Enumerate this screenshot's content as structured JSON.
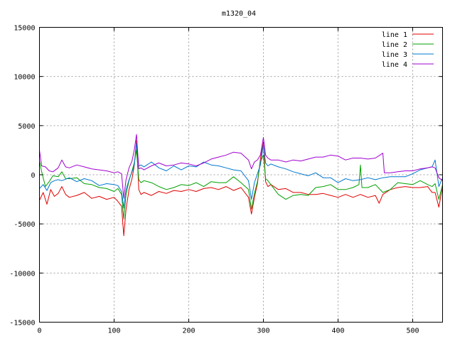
{
  "chart_data": {
    "type": "line",
    "title": "m1320_04",
    "xlabel": "",
    "ylabel": "",
    "xlim": [
      0,
      540
    ],
    "ylim": [
      -15000,
      15000
    ],
    "xticks": [
      0,
      100,
      200,
      300,
      400,
      500
    ],
    "yticks": [
      -15000,
      -10000,
      -5000,
      0,
      5000,
      10000,
      15000
    ],
    "xtick_labels": [
      "0",
      "100",
      "200",
      "300",
      "400",
      "500"
    ],
    "ytick_labels": [
      "-15000",
      "-10000",
      "-5000",
      "0",
      "5000",
      "10000",
      "15000"
    ],
    "grid": true,
    "legend_position": "top-right",
    "series": [
      {
        "name": "line 1",
        "color": "#e00000",
        "points": [
          [
            0,
            -2600
          ],
          [
            5,
            -1800
          ],
          [
            10,
            -3000
          ],
          [
            15,
            -1500
          ],
          [
            20,
            -2200
          ],
          [
            25,
            -1900
          ],
          [
            30,
            -1200
          ],
          [
            35,
            -2000
          ],
          [
            40,
            -2300
          ],
          [
            50,
            -2100
          ],
          [
            60,
            -1800
          ],
          [
            70,
            -2400
          ],
          [
            80,
            -2200
          ],
          [
            90,
            -2500
          ],
          [
            100,
            -2300
          ],
          [
            105,
            -2700
          ],
          [
            110,
            -3200
          ],
          [
            113,
            -6200
          ],
          [
            116,
            -3500
          ],
          [
            120,
            -1500
          ],
          [
            124,
            -400
          ],
          [
            127,
            900
          ],
          [
            130,
            3500
          ],
          [
            133,
            -1500
          ],
          [
            136,
            -2000
          ],
          [
            140,
            -1800
          ],
          [
            150,
            -2100
          ],
          [
            160,
            -1700
          ],
          [
            170,
            -1900
          ],
          [
            180,
            -1600
          ],
          [
            190,
            -1700
          ],
          [
            200,
            -1500
          ],
          [
            210,
            -1700
          ],
          [
            220,
            -1400
          ],
          [
            230,
            -1300
          ],
          [
            240,
            -1500
          ],
          [
            250,
            -1200
          ],
          [
            260,
            -1600
          ],
          [
            270,
            -1300
          ],
          [
            280,
            -2300
          ],
          [
            284,
            -4000
          ],
          [
            288,
            -2300
          ],
          [
            292,
            -900
          ],
          [
            296,
            1600
          ],
          [
            300,
            3300
          ],
          [
            303,
            -700
          ],
          [
            306,
            -1200
          ],
          [
            310,
            -1000
          ],
          [
            320,
            -1500
          ],
          [
            330,
            -1400
          ],
          [
            340,
            -1800
          ],
          [
            350,
            -1800
          ],
          [
            360,
            -2000
          ],
          [
            370,
            -2000
          ],
          [
            380,
            -1900
          ],
          [
            390,
            -2100
          ],
          [
            400,
            -2300
          ],
          [
            410,
            -2000
          ],
          [
            420,
            -2300
          ],
          [
            430,
            -2000
          ],
          [
            440,
            -2300
          ],
          [
            450,
            -2100
          ],
          [
            455,
            -2900
          ],
          [
            460,
            -2000
          ],
          [
            470,
            -1500
          ],
          [
            480,
            -1300
          ],
          [
            490,
            -1200
          ],
          [
            500,
            -1300
          ],
          [
            510,
            -1300
          ],
          [
            520,
            -1200
          ],
          [
            526,
            -1800
          ],
          [
            530,
            -1800
          ],
          [
            535,
            -3300
          ],
          [
            540,
            -1200
          ]
        ]
      },
      {
        "name": "line 2",
        "color": "#00a000",
        "points": [
          [
            0,
            1400
          ],
          [
            3,
            300
          ],
          [
            8,
            -1200
          ],
          [
            13,
            -700
          ],
          [
            18,
            -100
          ],
          [
            25,
            -200
          ],
          [
            30,
            300
          ],
          [
            35,
            -400
          ],
          [
            40,
            -400
          ],
          [
            50,
            -300
          ],
          [
            60,
            -900
          ],
          [
            70,
            -1000
          ],
          [
            80,
            -1300
          ],
          [
            90,
            -1400
          ],
          [
            100,
            -1700
          ],
          [
            105,
            -1400
          ],
          [
            110,
            -2000
          ],
          [
            113,
            -4500
          ],
          [
            116,
            -2000
          ],
          [
            120,
            -600
          ],
          [
            124,
            400
          ],
          [
            127,
            1200
          ],
          [
            130,
            2500
          ],
          [
            133,
            -500
          ],
          [
            136,
            -800
          ],
          [
            140,
            -600
          ],
          [
            150,
            -800
          ],
          [
            160,
            -1200
          ],
          [
            170,
            -1500
          ],
          [
            180,
            -1300
          ],
          [
            190,
            -1000
          ],
          [
            200,
            -1100
          ],
          [
            210,
            -800
          ],
          [
            220,
            -1200
          ],
          [
            230,
            -700
          ],
          [
            240,
            -800
          ],
          [
            250,
            -800
          ],
          [
            260,
            -200
          ],
          [
            270,
            -800
          ],
          [
            280,
            -1500
          ],
          [
            284,
            -3500
          ],
          [
            288,
            -1900
          ],
          [
            292,
            -700
          ],
          [
            296,
            1300
          ],
          [
            300,
            2000
          ],
          [
            303,
            -400
          ],
          [
            306,
            -600
          ],
          [
            310,
            -1000
          ],
          [
            320,
            -2000
          ],
          [
            330,
            -2500
          ],
          [
            340,
            -2100
          ],
          [
            350,
            -2000
          ],
          [
            360,
            -2100
          ],
          [
            370,
            -1300
          ],
          [
            380,
            -1200
          ],
          [
            390,
            -1000
          ],
          [
            400,
            -1500
          ],
          [
            410,
            -1500
          ],
          [
            420,
            -1300
          ],
          [
            428,
            -1000
          ],
          [
            430,
            1000
          ],
          [
            432,
            -1300
          ],
          [
            440,
            -1300
          ],
          [
            450,
            -1000
          ],
          [
            460,
            -1800
          ],
          [
            470,
            -1500
          ],
          [
            480,
            -800
          ],
          [
            490,
            -900
          ],
          [
            500,
            -1000
          ],
          [
            510,
            -600
          ],
          [
            520,
            -1000
          ],
          [
            526,
            -1200
          ],
          [
            530,
            -900
          ],
          [
            535,
            -2500
          ],
          [
            540,
            -1000
          ]
        ]
      },
      {
        "name": "line 3",
        "color": "#0078d0",
        "points": [
          [
            0,
            -1400
          ],
          [
            5,
            -1000
          ],
          [
            10,
            -1600
          ],
          [
            15,
            -800
          ],
          [
            20,
            -600
          ],
          [
            25,
            -500
          ],
          [
            30,
            -600
          ],
          [
            40,
            -300
          ],
          [
            50,
            -700
          ],
          [
            60,
            -400
          ],
          [
            70,
            -600
          ],
          [
            80,
            -1100
          ],
          [
            90,
            -900
          ],
          [
            100,
            -1000
          ],
          [
            105,
            -1100
          ],
          [
            110,
            -1700
          ],
          [
            113,
            -3400
          ],
          [
            116,
            -1500
          ],
          [
            120,
            -500
          ],
          [
            124,
            300
          ],
          [
            127,
            900
          ],
          [
            130,
            3200
          ],
          [
            133,
            900
          ],
          [
            136,
            1000
          ],
          [
            140,
            800
          ],
          [
            150,
            1300
          ],
          [
            160,
            700
          ],
          [
            170,
            400
          ],
          [
            180,
            900
          ],
          [
            190,
            500
          ],
          [
            200,
            900
          ],
          [
            210,
            800
          ],
          [
            220,
            1300
          ],
          [
            230,
            1000
          ],
          [
            240,
            900
          ],
          [
            250,
            700
          ],
          [
            260,
            500
          ],
          [
            270,
            400
          ],
          [
            280,
            -600
          ],
          [
            284,
            -2500
          ],
          [
            288,
            -800
          ],
          [
            292,
            100
          ],
          [
            296,
            1000
          ],
          [
            300,
            3100
          ],
          [
            303,
            1200
          ],
          [
            306,
            900
          ],
          [
            310,
            1100
          ],
          [
            320,
            800
          ],
          [
            330,
            600
          ],
          [
            340,
            300
          ],
          [
            350,
            100
          ],
          [
            360,
            -100
          ],
          [
            370,
            200
          ],
          [
            380,
            -300
          ],
          [
            390,
            -300
          ],
          [
            400,
            -800
          ],
          [
            410,
            -400
          ],
          [
            420,
            -600
          ],
          [
            430,
            -500
          ],
          [
            440,
            -300
          ],
          [
            450,
            -500
          ],
          [
            460,
            -300
          ],
          [
            470,
            -200
          ],
          [
            480,
            -200
          ],
          [
            490,
            -200
          ],
          [
            500,
            100
          ],
          [
            510,
            500
          ],
          [
            520,
            700
          ],
          [
            526,
            800
          ],
          [
            530,
            1500
          ],
          [
            535,
            -1200
          ],
          [
            540,
            -300
          ]
        ]
      },
      {
        "name": "line 4",
        "color": "#a000d0",
        "points": [
          [
            0,
            2500
          ],
          [
            3,
            900
          ],
          [
            8,
            800
          ],
          [
            13,
            400
          ],
          [
            18,
            300
          ],
          [
            25,
            700
          ],
          [
            30,
            1500
          ],
          [
            35,
            800
          ],
          [
            40,
            700
          ],
          [
            50,
            1000
          ],
          [
            60,
            800
          ],
          [
            70,
            600
          ],
          [
            80,
            500
          ],
          [
            90,
            400
          ],
          [
            100,
            200
          ],
          [
            105,
            300
          ],
          [
            110,
            100
          ],
          [
            113,
            -2400
          ],
          [
            116,
            -500
          ],
          [
            120,
            700
          ],
          [
            124,
            1400
          ],
          [
            127,
            2500
          ],
          [
            130,
            4100
          ],
          [
            133,
            600
          ],
          [
            136,
            700
          ],
          [
            140,
            500
          ],
          [
            150,
            900
          ],
          [
            160,
            1200
          ],
          [
            170,
            900
          ],
          [
            180,
            1000
          ],
          [
            190,
            1200
          ],
          [
            200,
            1100
          ],
          [
            210,
            900
          ],
          [
            220,
            1200
          ],
          [
            230,
            1600
          ],
          [
            240,
            1800
          ],
          [
            250,
            2000
          ],
          [
            260,
            2300
          ],
          [
            270,
            2200
          ],
          [
            280,
            1500
          ],
          [
            284,
            600
          ],
          [
            288,
            1300
          ],
          [
            292,
            1500
          ],
          [
            296,
            2000
          ],
          [
            300,
            3800
          ],
          [
            303,
            2000
          ],
          [
            306,
            1700
          ],
          [
            310,
            1500
          ],
          [
            320,
            1500
          ],
          [
            330,
            1300
          ],
          [
            340,
            1500
          ],
          [
            350,
            1400
          ],
          [
            360,
            1600
          ],
          [
            370,
            1800
          ],
          [
            380,
            1800
          ],
          [
            390,
            2000
          ],
          [
            400,
            1900
          ],
          [
            410,
            1500
          ],
          [
            420,
            1700
          ],
          [
            430,
            1700
          ],
          [
            440,
            1600
          ],
          [
            450,
            1700
          ],
          [
            460,
            2200
          ],
          [
            462,
            200
          ],
          [
            470,
            200
          ],
          [
            480,
            300
          ],
          [
            490,
            400
          ],
          [
            500,
            400
          ],
          [
            510,
            600
          ],
          [
            520,
            700
          ],
          [
            526,
            800
          ],
          [
            530,
            700
          ],
          [
            535,
            -300
          ],
          [
            540,
            -600
          ]
        ]
      }
    ]
  }
}
